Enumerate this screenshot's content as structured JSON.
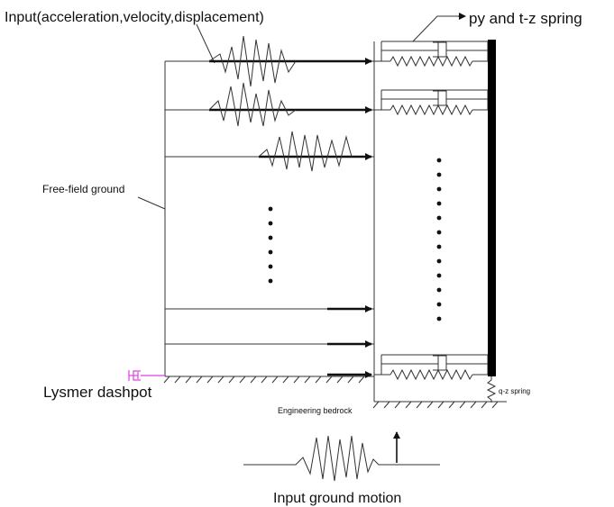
{
  "labels": {
    "input_title": "Input(acceleration,velocity,displacement)",
    "py_tz_spring": "py and t-z spring",
    "free_field": "Free-field ground",
    "lysmer": "Lysmer dashpot",
    "qz_spring": "q-z spring",
    "bedrock": "Engineering bedrock",
    "ground_motion": "Input ground motion"
  },
  "colors": {
    "line": "#333333",
    "dashpot": "#e040e0"
  }
}
